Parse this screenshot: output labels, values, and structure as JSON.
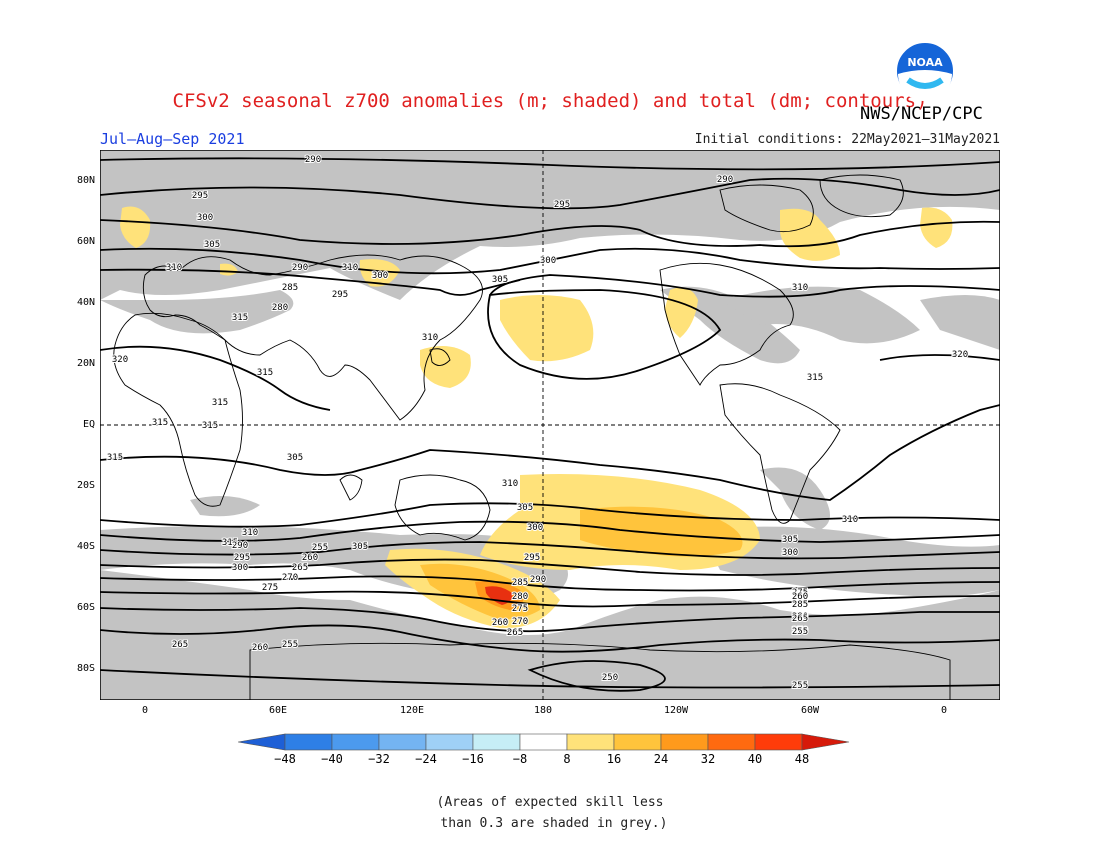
{
  "title": "CFSv2 seasonal z700 anomalies (m; shaded) and total (dm; contours)",
  "agency": "NWS/NCEP/CPC",
  "logo_text": "NOAA",
  "season": "Jul–Aug–Sep 2021",
  "initial_conditions": "Initial conditions: 22May2021–31May2021",
  "lat_labels": [
    "80N",
    "60N",
    "40N",
    "20N",
    "EQ",
    "20S",
    "40S",
    "60S",
    "80S"
  ],
  "lon_labels": [
    "0",
    "60E",
    "120E",
    "180",
    "120W",
    "60W",
    "0"
  ],
  "colorbar": {
    "labels": [
      "−48",
      "−40",
      "−32",
      "−24",
      "−16",
      "−8",
      "8",
      "16",
      "24",
      "32",
      "40",
      "48"
    ],
    "colors": [
      "#1e5fd6",
      "#2e7fe6",
      "#4c9aee",
      "#74b4f2",
      "#9fd0f6",
      "#c6eef6",
      "#ffffff",
      "#ffe27a",
      "#ffc43c",
      "#ff9a1c",
      "#ff6a10",
      "#ff3c0a",
      "#d61a0a"
    ]
  },
  "shading": {
    "low_skill_color": "#c3c3c3",
    "positive_16_24": "#ffe27a",
    "positive_24_32": "#ffc43c",
    "positive_32_40": "#ff9a1c",
    "positive_40_48": "#ff6a10",
    "positive_48plus": "#e83010"
  },
  "contour_labels": [
    "290",
    "295",
    "300",
    "305",
    "310",
    "315",
    "320",
    "310",
    "315",
    "315",
    "315",
    "320",
    "315",
    "310",
    "305",
    "300",
    "295",
    "290",
    "285",
    "280",
    "275",
    "270",
    "265",
    "260",
    "255",
    "250",
    "255",
    "260",
    "265",
    "310",
    "305",
    "300",
    "295",
    "290",
    "285",
    "280",
    "275",
    "270",
    "265",
    "260",
    "255",
    "300",
    "305",
    "310",
    "315",
    "310",
    "305",
    "300",
    "295",
    "290",
    "285",
    "280",
    "275",
    "270",
    "265",
    "260",
    "255",
    "310",
    "315",
    "315",
    "305",
    "300",
    "295",
    "290"
  ],
  "note": "(Areas of expected skill less\n than 0.3 are shaded in grey.)"
}
